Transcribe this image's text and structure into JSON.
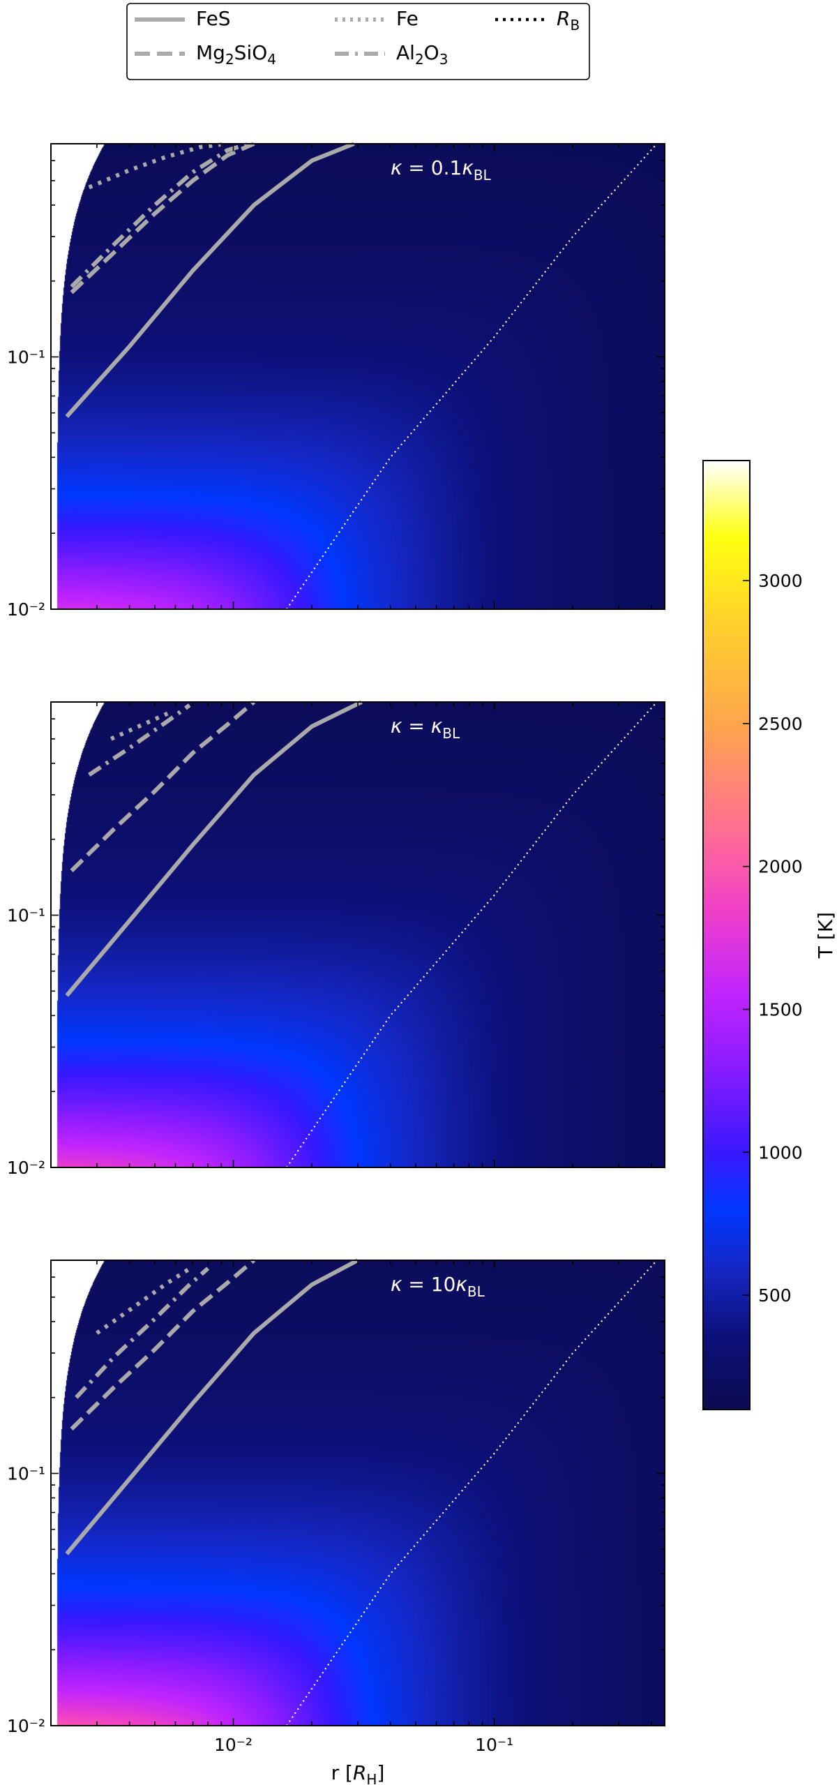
{
  "chart_data": {
    "type": "heatmap",
    "x_scale": "log",
    "y_scale": "log",
    "xlim": [
      0.002,
      0.45
    ],
    "ylim": [
      0.01,
      0.7
    ],
    "xlabel": "r [R_H]",
    "xlabel_parts": {
      "pre": "r [",
      "sym": "R",
      "sub": "H",
      "post": "]"
    },
    "x_tick_labels": [
      {
        "value": 0.01,
        "label": "10⁻²"
      },
      {
        "value": 0.1,
        "label": "10⁻¹"
      }
    ],
    "y_tick_labels": [
      {
        "value": 0.01,
        "label": "10⁻²"
      },
      {
        "value": 0.1,
        "label": "10⁻¹"
      }
    ],
    "colorbar": {
      "label": "T [K]",
      "range": [
        100,
        3420
      ],
      "ticks": [
        500,
        1000,
        1500,
        2000,
        2500,
        3000
      ],
      "colormap": "plasma-like",
      "stops": [
        {
          "t": 100,
          "color": "#0b0b50"
        },
        {
          "t": 350,
          "color": "#0d1078"
        },
        {
          "t": 600,
          "color": "#1528c8"
        },
        {
          "t": 800,
          "color": "#0037ff"
        },
        {
          "t": 1000,
          "color": "#3a18ff"
        },
        {
          "t": 1300,
          "color": "#8a1cff"
        },
        {
          "t": 1550,
          "color": "#c024ff"
        },
        {
          "t": 1850,
          "color": "#f040c8"
        },
        {
          "t": 2100,
          "color": "#ff6a98"
        },
        {
          "t": 2500,
          "color": "#ffa64c"
        },
        {
          "t": 2850,
          "color": "#ffd02c"
        },
        {
          "t": 3150,
          "color": "#ffff10"
        },
        {
          "t": 3420,
          "color": "#ffffff"
        }
      ]
    },
    "legend": {
      "placement": "top-center",
      "entries": [
        {
          "name": "FeS",
          "style": "solid",
          "color": "#aaaaaa"
        },
        {
          "name": "Fe",
          "style": "dotted",
          "color": "#aaaaaa"
        },
        {
          "name": "R_B",
          "style": "dotted",
          "color": "#000000",
          "math": true,
          "sym": "R",
          "sub": "B"
        },
        {
          "name": "Mg2SiO4",
          "style": "dashed",
          "color": "#aaaaaa",
          "parts": [
            "Mg",
            "2",
            "SiO",
            "4"
          ]
        },
        {
          "name": "Al2O3",
          "style": "dashdot",
          "color": "#aaaaaa",
          "parts": [
            "Al",
            "2",
            "O",
            "3"
          ]
        }
      ]
    },
    "panels": [
      {
        "label": "κ = 0.1κBL",
        "label_parts": {
          "pre": "κ = 0.1",
          "sym": "κ",
          "sub": "BL"
        },
        "T_scale": 0.92,
        "series": [
          {
            "name": "FeS",
            "x": [
              0.0023,
              0.004,
              0.007,
              0.012,
              0.02,
              0.029
            ],
            "y": [
              0.058,
              0.11,
              0.22,
              0.4,
              0.6,
              0.7
            ]
          },
          {
            "name": "Mg2SiO4",
            "x": [
              0.0024,
              0.0035,
              0.005,
              0.007,
              0.0095,
              0.012
            ],
            "y": [
              0.18,
              0.26,
              0.37,
              0.5,
              0.63,
              0.7
            ]
          },
          {
            "name": "Al2O3",
            "x": [
              0.0024,
              0.0035,
              0.005,
              0.007,
              0.0095,
              0.0115
            ],
            "y": [
              0.19,
              0.28,
              0.4,
              0.54,
              0.66,
              0.7
            ]
          },
          {
            "name": "Fe",
            "x": [
              0.0028,
              0.004,
              0.0055,
              0.0075,
              0.0095
            ],
            "y": [
              0.47,
              0.55,
              0.62,
              0.68,
              0.7
            ]
          },
          {
            "name": "R_B",
            "x": [
              0.016,
              0.04,
              0.1,
              0.2,
              0.42
            ],
            "y": [
              0.01,
              0.04,
              0.12,
              0.3,
              0.7
            ]
          }
        ]
      },
      {
        "label": "κ = κBL",
        "label_parts": {
          "pre": "κ = ",
          "sym": "κ",
          "sub": "BL"
        },
        "T_scale": 1.0,
        "series": [
          {
            "name": "FeS",
            "x": [
              0.0023,
              0.004,
              0.007,
              0.012,
              0.02,
              0.031
            ],
            "y": [
              0.048,
              0.095,
              0.19,
              0.36,
              0.56,
              0.7
            ]
          },
          {
            "name": "Mg2SiO4",
            "x": [
              0.0024,
              0.0035,
              0.005,
              0.007,
              0.0095,
              0.012
            ],
            "y": [
              0.15,
              0.22,
              0.31,
              0.44,
              0.57,
              0.7
            ]
          },
          {
            "name": "Al2O3",
            "x": [
              0.0028,
              0.004,
              0.0055,
              0.0068
            ],
            "y": [
              0.36,
              0.46,
              0.58,
              0.68
            ]
          },
          {
            "name": "Fe",
            "x": [
              0.0034,
              0.0045,
              0.0056
            ],
            "y": [
              0.5,
              0.57,
              0.63
            ]
          },
          {
            "name": "R_B",
            "x": [
              0.016,
              0.04,
              0.1,
              0.2,
              0.42
            ],
            "y": [
              0.01,
              0.04,
              0.12,
              0.3,
              0.7
            ]
          }
        ]
      },
      {
        "label": "κ = 10κBL",
        "label_parts": {
          "pre": "κ = 10",
          "sym": "κ",
          "sub": "BL"
        },
        "T_scale": 1.08,
        "series": [
          {
            "name": "FeS",
            "x": [
              0.0023,
              0.004,
              0.007,
              0.012,
              0.02,
              0.03
            ],
            "y": [
              0.048,
              0.095,
              0.19,
              0.36,
              0.56,
              0.7
            ]
          },
          {
            "name": "Mg2SiO4",
            "x": [
              0.0024,
              0.0035,
              0.005,
              0.007,
              0.0095,
              0.012
            ],
            "y": [
              0.15,
              0.22,
              0.31,
              0.44,
              0.57,
              0.7
            ]
          },
          {
            "name": "Al2O3",
            "x": [
              0.0025,
              0.0035,
              0.005,
              0.0068,
              0.008
            ],
            "y": [
              0.2,
              0.29,
              0.41,
              0.56,
              0.65
            ]
          },
          {
            "name": "Fe",
            "x": [
              0.003,
              0.0042,
              0.0056,
              0.007
            ],
            "y": [
              0.36,
              0.46,
              0.57,
              0.66
            ]
          },
          {
            "name": "R_B",
            "x": [
              0.016,
              0.04,
              0.1,
              0.2,
              0.42
            ],
            "y": [
              0.01,
              0.04,
              0.12,
              0.3,
              0.7
            ]
          }
        ]
      }
    ]
  }
}
